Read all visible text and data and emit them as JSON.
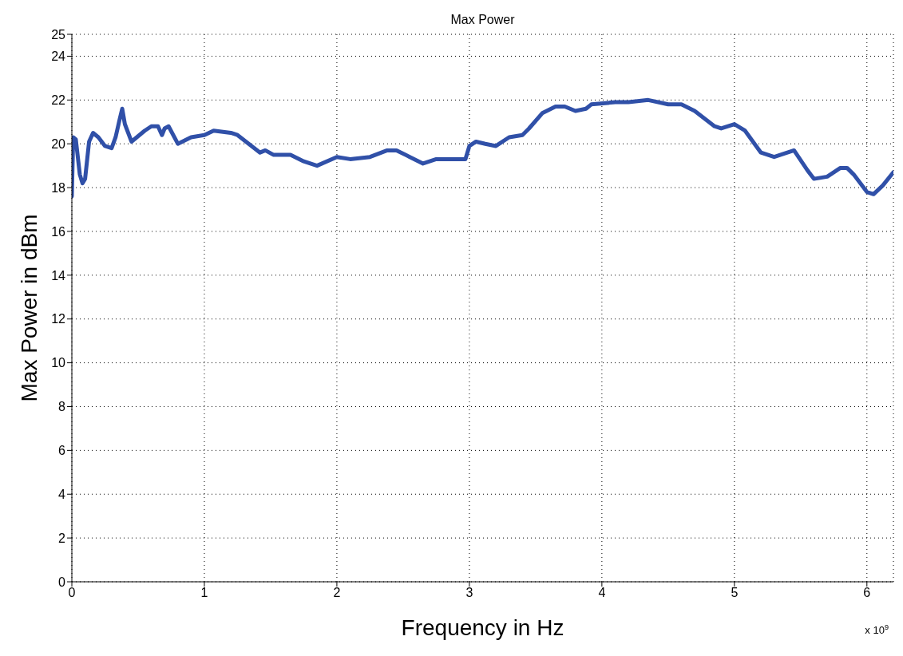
{
  "chart_data": {
    "type": "line",
    "title": "Max Power",
    "xlabel": "Frequency in Hz",
    "ylabel": "Max Power in dBm",
    "annotations": [
      "x 10$^{9}$"
    ],
    "x": [
      0,
      0.01,
      0.03,
      0.06,
      0.08,
      0.1,
      0.13,
      0.16,
      0.2,
      0.25,
      0.3,
      0.33,
      0.36,
      0.38,
      0.4,
      0.45,
      0.55,
      0.6,
      0.65,
      0.68,
      0.7,
      0.73,
      0.8,
      0.9,
      1.0,
      1.07,
      1.2,
      1.25,
      1.42,
      1.46,
      1.52,
      1.65,
      1.75,
      1.85,
      2.0,
      2.1,
      2.25,
      2.38,
      2.45,
      2.55,
      2.65,
      2.75,
      2.85,
      2.97,
      3.0,
      3.05,
      3.12,
      3.2,
      3.3,
      3.4,
      3.45,
      3.55,
      3.65,
      3.72,
      3.8,
      3.88,
      3.92,
      4.1,
      4.2,
      4.35,
      4.5,
      4.6,
      4.7,
      4.85,
      4.9,
      5.0,
      5.08,
      5.2,
      5.3,
      5.4,
      5.45,
      5.55,
      5.6,
      5.7,
      5.8,
      5.85,
      5.9,
      6.0,
      6.05,
      6.12,
      6.2
    ],
    "series": [
      {
        "color": "#3050a8",
        "values": [
          17.6,
          20.3,
          20.2,
          18.6,
          18.2,
          18.4,
          20.1,
          20.5,
          20.3,
          19.9,
          19.8,
          20.3,
          21.1,
          21.6,
          20.9,
          20.1,
          20.6,
          20.8,
          20.8,
          20.4,
          20.7,
          20.8,
          20.0,
          20.3,
          20.4,
          20.6,
          20.5,
          20.4,
          19.6,
          19.7,
          19.5,
          19.5,
          19.2,
          19.0,
          19.4,
          19.3,
          19.4,
          19.7,
          19.7,
          19.4,
          19.1,
          19.3,
          19.3,
          19.3,
          19.9,
          20.1,
          20.0,
          19.9,
          20.3,
          20.4,
          20.7,
          21.4,
          21.7,
          21.7,
          21.5,
          21.6,
          21.8,
          21.9,
          21.9,
          22.0,
          21.8,
          21.8,
          21.5,
          20.8,
          20.7,
          20.9,
          20.6,
          19.6,
          19.4,
          19.6,
          19.7,
          18.8,
          18.4,
          18.5,
          18.9,
          18.9,
          18.6,
          17.8,
          17.7,
          18.1,
          18.7
        ]
      }
    ],
    "xlim": [
      0,
      6.2
    ],
    "xticks": [
      0,
      1,
      2,
      3,
      4,
      5,
      6
    ],
    "ylim": [
      0,
      25
    ],
    "yticks": [
      0,
      2,
      4,
      6,
      8,
      10,
      12,
      14,
      16,
      18,
      20,
      22,
      24,
      25
    ],
    "grid": true,
    "marker": "none",
    "line_style": "solid"
  }
}
